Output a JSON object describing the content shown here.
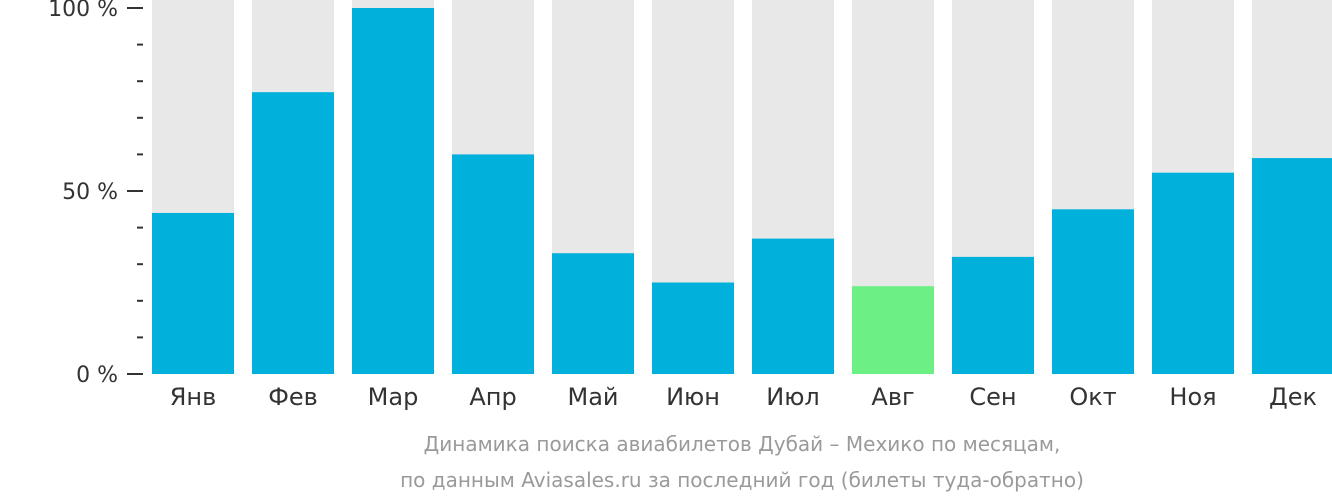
{
  "chart_data": {
    "type": "bar",
    "categories": [
      "Янв",
      "Фев",
      "Мар",
      "Апр",
      "Май",
      "Июн",
      "Июл",
      "Авг",
      "Сен",
      "Окт",
      "Ноя",
      "Дек"
    ],
    "values": [
      44,
      77,
      100,
      60,
      33,
      25,
      37,
      24,
      32,
      45,
      55,
      59
    ],
    "ylim": [
      0,
      100
    ],
    "ytick_labels": [
      "0 %",
      "50 %",
      "100 %"
    ],
    "highlight_index": 7,
    "colors": {
      "bar": "#02b0dc",
      "highlight": "#6cf086",
      "background_bar": "#e8e8e8",
      "axis": "#333333"
    },
    "caption_line_1": "Динамика поиска авиабилетов Дубай – Мехико по месяцам,",
    "caption_line_2": "по данным Aviasales.ru за последний год (билеты туда-обратно)"
  }
}
